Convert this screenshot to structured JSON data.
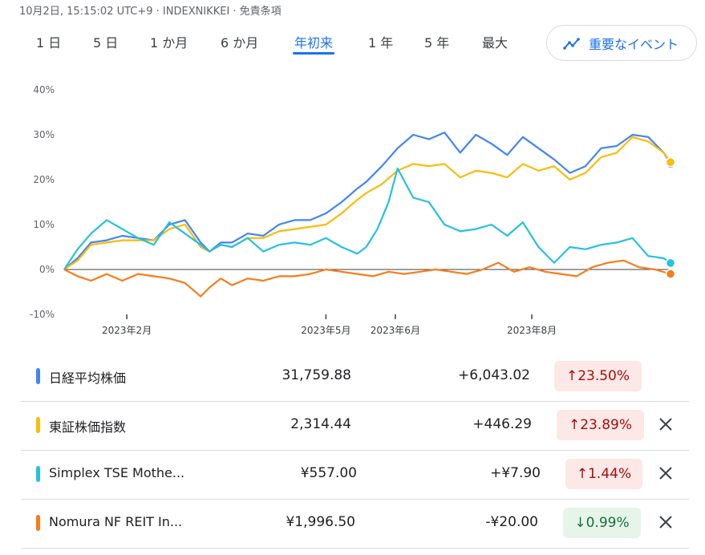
{
  "header": {
    "timestamp": "10月2日, 15:15:02 UTC+9 · INDEXNIKKEI · 免責条項"
  },
  "range_tabs": [
    {
      "label": "1 日",
      "active": false
    },
    {
      "label": "5 日",
      "active": false
    },
    {
      "label": "1 か月",
      "active": false
    },
    {
      "label": "6 か月",
      "active": false
    },
    {
      "label": "年初来",
      "active": true
    },
    {
      "label": "1 年",
      "active": false
    },
    {
      "label": "5 年",
      "active": false
    },
    {
      "label": "最大",
      "active": false
    }
  ],
  "events_button": {
    "label": "重要なイベント",
    "icon": "trend-icon"
  },
  "chart_data": {
    "type": "line",
    "y_unit": "%",
    "ylim": [
      -10,
      40
    ],
    "yticks": [
      40,
      30,
      20,
      10,
      0,
      -10
    ],
    "ytick_labels": [
      "40%",
      "30%",
      "20%",
      "10%",
      "0%",
      "-10%"
    ],
    "xlim": [
      "2023-01-04",
      "2023-10-02"
    ],
    "xticks": [
      "2023-02-01",
      "2023-05-01",
      "2023-06-01",
      "2023-08-01"
    ],
    "xtick_labels": [
      "2023年2月",
      "2023年5月",
      "2023年6月",
      "2023年8月"
    ],
    "baseline": 0,
    "grid": false,
    "series": [
      {
        "name": "日経平均株価",
        "color": "#4285f4",
        "x": [
          "2023-01-04",
          "2023-01-10",
          "2023-01-16",
          "2023-01-23",
          "2023-01-30",
          "2023-02-06",
          "2023-02-13",
          "2023-02-20",
          "2023-02-27",
          "2023-03-06",
          "2023-03-10",
          "2023-03-15",
          "2023-03-20",
          "2023-03-27",
          "2023-04-03",
          "2023-04-10",
          "2023-04-17",
          "2023-04-24",
          "2023-05-01",
          "2023-05-08",
          "2023-05-15",
          "2023-05-19",
          "2023-05-26",
          "2023-06-02",
          "2023-06-09",
          "2023-06-16",
          "2023-06-23",
          "2023-06-30",
          "2023-07-07",
          "2023-07-14",
          "2023-07-21",
          "2023-07-28",
          "2023-08-04",
          "2023-08-11",
          "2023-08-18",
          "2023-08-25",
          "2023-09-01",
          "2023-09-08",
          "2023-09-15",
          "2023-09-22",
          "2023-09-29",
          "2023-10-02"
        ],
        "values": [
          0,
          2.5,
          6.0,
          6.5,
          7.5,
          7.0,
          6.5,
          10.0,
          11.0,
          6.0,
          4.0,
          6.0,
          6.0,
          8.0,
          7.5,
          10.0,
          11.0,
          11.0,
          12.5,
          15.0,
          18.0,
          19.5,
          23.0,
          27.0,
          30.0,
          29.0,
          30.5,
          26.0,
          30.0,
          28.0,
          25.5,
          29.5,
          27.0,
          24.5,
          21.5,
          23.0,
          27.0,
          27.5,
          30.0,
          29.5,
          26.0,
          23.5
        ]
      },
      {
        "name": "東証株価指数",
        "color": "#fbbc04",
        "x": [
          "2023-01-04",
          "2023-01-10",
          "2023-01-16",
          "2023-01-23",
          "2023-01-30",
          "2023-02-06",
          "2023-02-13",
          "2023-02-20",
          "2023-02-27",
          "2023-03-06",
          "2023-03-10",
          "2023-03-15",
          "2023-03-20",
          "2023-03-27",
          "2023-04-03",
          "2023-04-10",
          "2023-04-17",
          "2023-04-24",
          "2023-05-01",
          "2023-05-08",
          "2023-05-15",
          "2023-05-19",
          "2023-05-26",
          "2023-06-02",
          "2023-06-09",
          "2023-06-16",
          "2023-06-23",
          "2023-06-30",
          "2023-07-07",
          "2023-07-14",
          "2023-07-21",
          "2023-07-28",
          "2023-08-04",
          "2023-08-11",
          "2023-08-18",
          "2023-08-25",
          "2023-09-01",
          "2023-09-08",
          "2023-09-15",
          "2023-09-22",
          "2023-09-29",
          "2023-10-02"
        ],
        "values": [
          0,
          2.0,
          5.5,
          6.0,
          6.5,
          6.5,
          6.5,
          9.0,
          10.0,
          5.0,
          4.0,
          5.5,
          5.0,
          7.0,
          7.0,
          8.5,
          9.0,
          9.5,
          10.0,
          12.5,
          15.5,
          17.0,
          19.0,
          22.0,
          23.5,
          23.0,
          23.5,
          20.5,
          22.0,
          21.5,
          20.5,
          23.5,
          22.0,
          23.0,
          20.0,
          21.5,
          25.0,
          26.0,
          29.5,
          28.5,
          26.0,
          23.89
        ]
      },
      {
        "name": "Simplex TSE Mothe...",
        "color": "#24c1e0",
        "x": [
          "2023-01-04",
          "2023-01-10",
          "2023-01-16",
          "2023-01-23",
          "2023-01-30",
          "2023-02-06",
          "2023-02-13",
          "2023-02-20",
          "2023-02-27",
          "2023-03-06",
          "2023-03-10",
          "2023-03-15",
          "2023-03-20",
          "2023-03-27",
          "2023-04-03",
          "2023-04-10",
          "2023-04-17",
          "2023-04-24",
          "2023-05-01",
          "2023-05-08",
          "2023-05-15",
          "2023-05-19",
          "2023-05-24",
          "2023-05-29",
          "2023-06-02",
          "2023-06-09",
          "2023-06-16",
          "2023-06-23",
          "2023-06-30",
          "2023-07-07",
          "2023-07-14",
          "2023-07-21",
          "2023-07-28",
          "2023-08-04",
          "2023-08-11",
          "2023-08-18",
          "2023-08-25",
          "2023-09-01",
          "2023-09-08",
          "2023-09-15",
          "2023-09-22",
          "2023-09-29",
          "2023-10-02"
        ],
        "values": [
          0,
          4.5,
          8.0,
          11.0,
          9.0,
          7.0,
          5.5,
          10.5,
          8.0,
          5.5,
          4.0,
          5.5,
          5.0,
          7.0,
          4.0,
          5.5,
          6.0,
          5.5,
          7.0,
          5.0,
          3.5,
          5.0,
          9.0,
          15.0,
          22.5,
          16.0,
          15.0,
          10.0,
          8.5,
          9.0,
          10.0,
          7.5,
          10.5,
          5.0,
          1.5,
          5.0,
          4.5,
          5.5,
          6.0,
          7.0,
          3.0,
          2.5,
          1.44
        ]
      },
      {
        "name": "Nomura NF REIT In...",
        "color": "#fa7b17",
        "x": [
          "2023-01-04",
          "2023-01-10",
          "2023-01-16",
          "2023-01-23",
          "2023-01-30",
          "2023-02-06",
          "2023-02-13",
          "2023-02-20",
          "2023-02-27",
          "2023-03-06",
          "2023-03-10",
          "2023-03-15",
          "2023-03-20",
          "2023-03-27",
          "2023-04-03",
          "2023-04-10",
          "2023-04-17",
          "2023-04-24",
          "2023-05-01",
          "2023-05-08",
          "2023-05-15",
          "2023-05-22",
          "2023-05-29",
          "2023-06-05",
          "2023-06-12",
          "2023-06-19",
          "2023-06-26",
          "2023-07-03",
          "2023-07-10",
          "2023-07-17",
          "2023-07-24",
          "2023-07-31",
          "2023-08-07",
          "2023-08-14",
          "2023-08-21",
          "2023-08-28",
          "2023-09-04",
          "2023-09-11",
          "2023-09-18",
          "2023-09-25",
          "2023-10-02"
        ],
        "values": [
          0,
          -1.5,
          -2.5,
          -1.0,
          -2.5,
          -1.0,
          -1.5,
          -2.0,
          -3.0,
          -6.0,
          -4.0,
          -2.0,
          -3.5,
          -2.0,
          -2.5,
          -1.5,
          -1.5,
          -1.0,
          0.0,
          -0.5,
          -1.0,
          -1.5,
          -0.5,
          -1.0,
          -0.5,
          0.0,
          -0.5,
          -1.0,
          0.0,
          1.5,
          -0.5,
          0.5,
          -0.5,
          -1.0,
          -1.5,
          0.5,
          1.5,
          2.0,
          0.5,
          0.0,
          -0.99
        ]
      }
    ]
  },
  "legend": [
    {
      "name": "日経平均株価",
      "color": "#4285f4",
      "price": "31,759.88",
      "change": "+6,043.02",
      "pct": "23.50%",
      "direction": "up",
      "removable": false
    },
    {
      "name": "東証株価指数",
      "color": "#fbbc04",
      "price": "2,314.44",
      "change": "+446.29",
      "pct": "23.89%",
      "direction": "up",
      "removable": true
    },
    {
      "name": "Simplex TSE Mothe...",
      "color": "#24c1e0",
      "price": "¥557.00",
      "change": "+¥7.90",
      "pct": "1.44%",
      "direction": "up",
      "removable": true
    },
    {
      "name": "Nomura NF REIT In...",
      "color": "#fa7b17",
      "price": "¥1,996.50",
      "change": "-¥20.00",
      "pct": "0.99%",
      "direction": "down",
      "removable": true
    }
  ]
}
